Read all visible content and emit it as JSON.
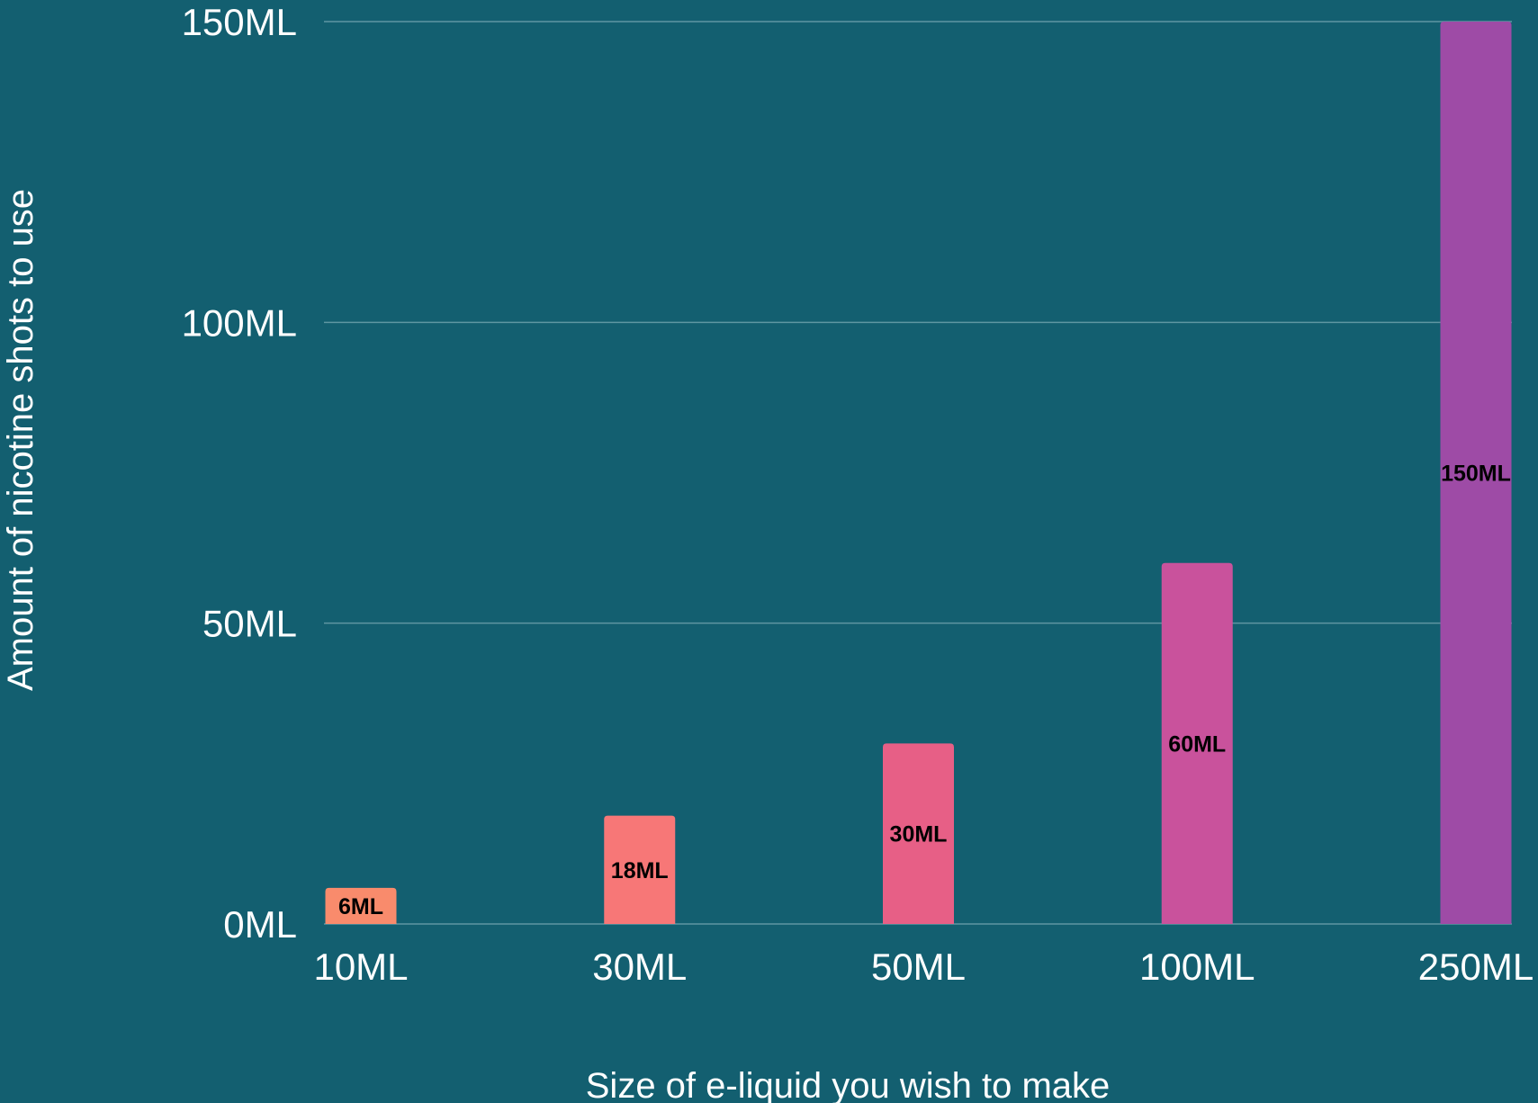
{
  "chart_data": {
    "type": "bar",
    "categories": [
      "10ML",
      "30ML",
      "50ML",
      "100ML",
      "250ML"
    ],
    "values": [
      6,
      18,
      30,
      60,
      150
    ],
    "data_labels": [
      "6ML",
      "18ML",
      "30ML",
      "60ML",
      "150ML"
    ],
    "bar_colors": [
      "#f98b6c",
      "#f77777",
      "#e75f86",
      "#c9529c",
      "#9e4ba6"
    ],
    "xlabel": "Size of e-liquid you wish to make",
    "ylabel": "Amount of nicotine shots to use",
    "ylim": [
      0,
      150
    ],
    "yticks": [
      0,
      50,
      100,
      150
    ],
    "ytick_labels": [
      "0ML",
      "50ML",
      "100ML",
      "150ML"
    ],
    "grid": true,
    "background_color": "#135f70"
  }
}
